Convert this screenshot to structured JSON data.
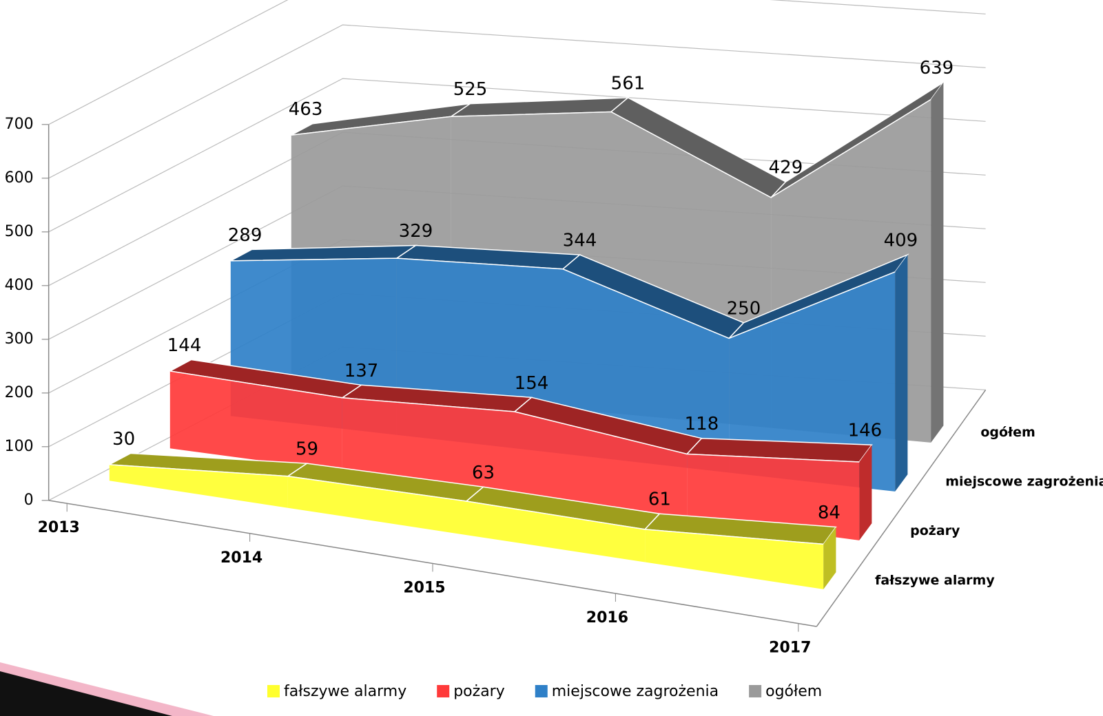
{
  "chart_data": {
    "type": "line",
    "categories": [
      "2013",
      "2014",
      "2015",
      "2016",
      "2017"
    ],
    "series": [
      {
        "name": "fałszywe alarmy",
        "color": "#ffff2e",
        "values": [
          30,
          59,
          63,
          61,
          84
        ]
      },
      {
        "name": "pożary",
        "color": "#ff3a3a",
        "values": [
          144,
          137,
          154,
          118,
          146
        ]
      },
      {
        "name": "miejscowe zagrożenia",
        "color": "#2f80c8",
        "values": [
          289,
          329,
          344,
          250,
          409
        ]
      },
      {
        "name": "ogółem",
        "color": "#9a9a9a",
        "values": [
          463,
          525,
          561,
          429,
          639
        ]
      }
    ],
    "ylim": [
      0,
      700
    ],
    "yticks": [
      0,
      100,
      200,
      300,
      400,
      500,
      600,
      700
    ],
    "grid": true,
    "legend": "bottom"
  }
}
